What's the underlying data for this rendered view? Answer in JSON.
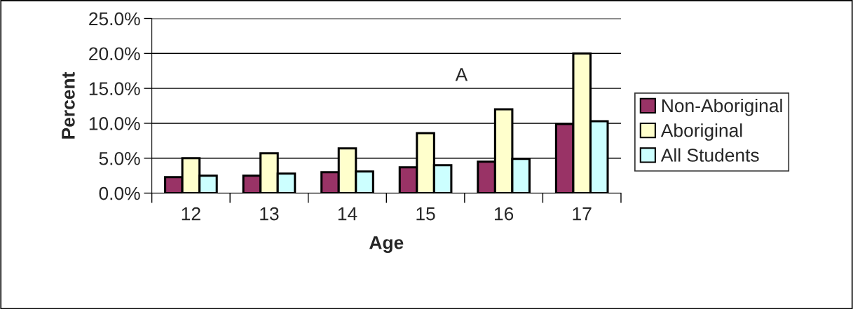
{
  "chart_data": {
    "type": "bar",
    "xlabel": "Age",
    "ylabel": "Percent",
    "categories": [
      "12",
      "13",
      "14",
      "15",
      "16",
      "17"
    ],
    "series": [
      {
        "name": "Non-Aboriginal",
        "color": "#993366",
        "values": [
          2.3,
          2.5,
          3.0,
          3.7,
          4.5,
          9.9
        ]
      },
      {
        "name": "Aboriginal",
        "color": "#ffffcc",
        "values": [
          5.0,
          5.7,
          6.4,
          8.6,
          12.0,
          20.0
        ]
      },
      {
        "name": "All Students",
        "color": "#ccffff",
        "values": [
          2.5,
          2.8,
          3.1,
          4.0,
          4.9,
          10.3
        ]
      }
    ],
    "ylim": [
      0,
      25
    ],
    "yticks": [
      {
        "value": 0,
        "label": "0.0%"
      },
      {
        "value": 5,
        "label": "5.0%"
      },
      {
        "value": 10,
        "label": "10.0%"
      },
      {
        "value": 15,
        "label": "15.0%"
      },
      {
        "value": 20,
        "label": "20.0%"
      },
      {
        "value": 25,
        "label": "25.0%"
      }
    ],
    "grid": "y",
    "legend": "right",
    "annotations": [
      "A"
    ]
  }
}
